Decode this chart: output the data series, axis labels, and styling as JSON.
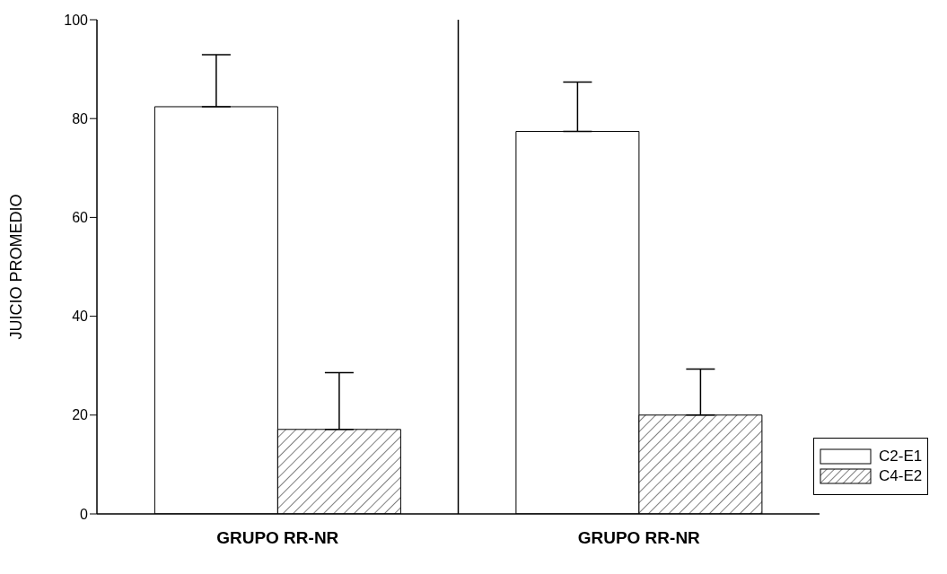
{
  "chart_data": {
    "type": "bar",
    "categories": [
      "GRUPO RR-NR",
      "GRUPO RR-NR"
    ],
    "ylabel": "JUICIO PROMEDIO",
    "series": [
      {
        "name": "C2-E1",
        "color": "#ffffff",
        "values": [
          82.4,
          77.4
        ],
        "errors": [
          [
            82.4,
            92.9
          ],
          [
            77.4,
            87.4
          ]
        ]
      },
      {
        "name": "C4-E2",
        "color": "#000000",
        "values": [
          17.1,
          20.0
        ],
        "errors": [
          [
            17.1,
            28.6
          ],
          [
            20.0,
            29.3
          ]
        ]
      }
    ],
    "ylim": [
      0,
      100
    ],
    "yticks": [
      0,
      20,
      40,
      60,
      80,
      100
    ],
    "grid": false,
    "legend": "bottom right"
  }
}
